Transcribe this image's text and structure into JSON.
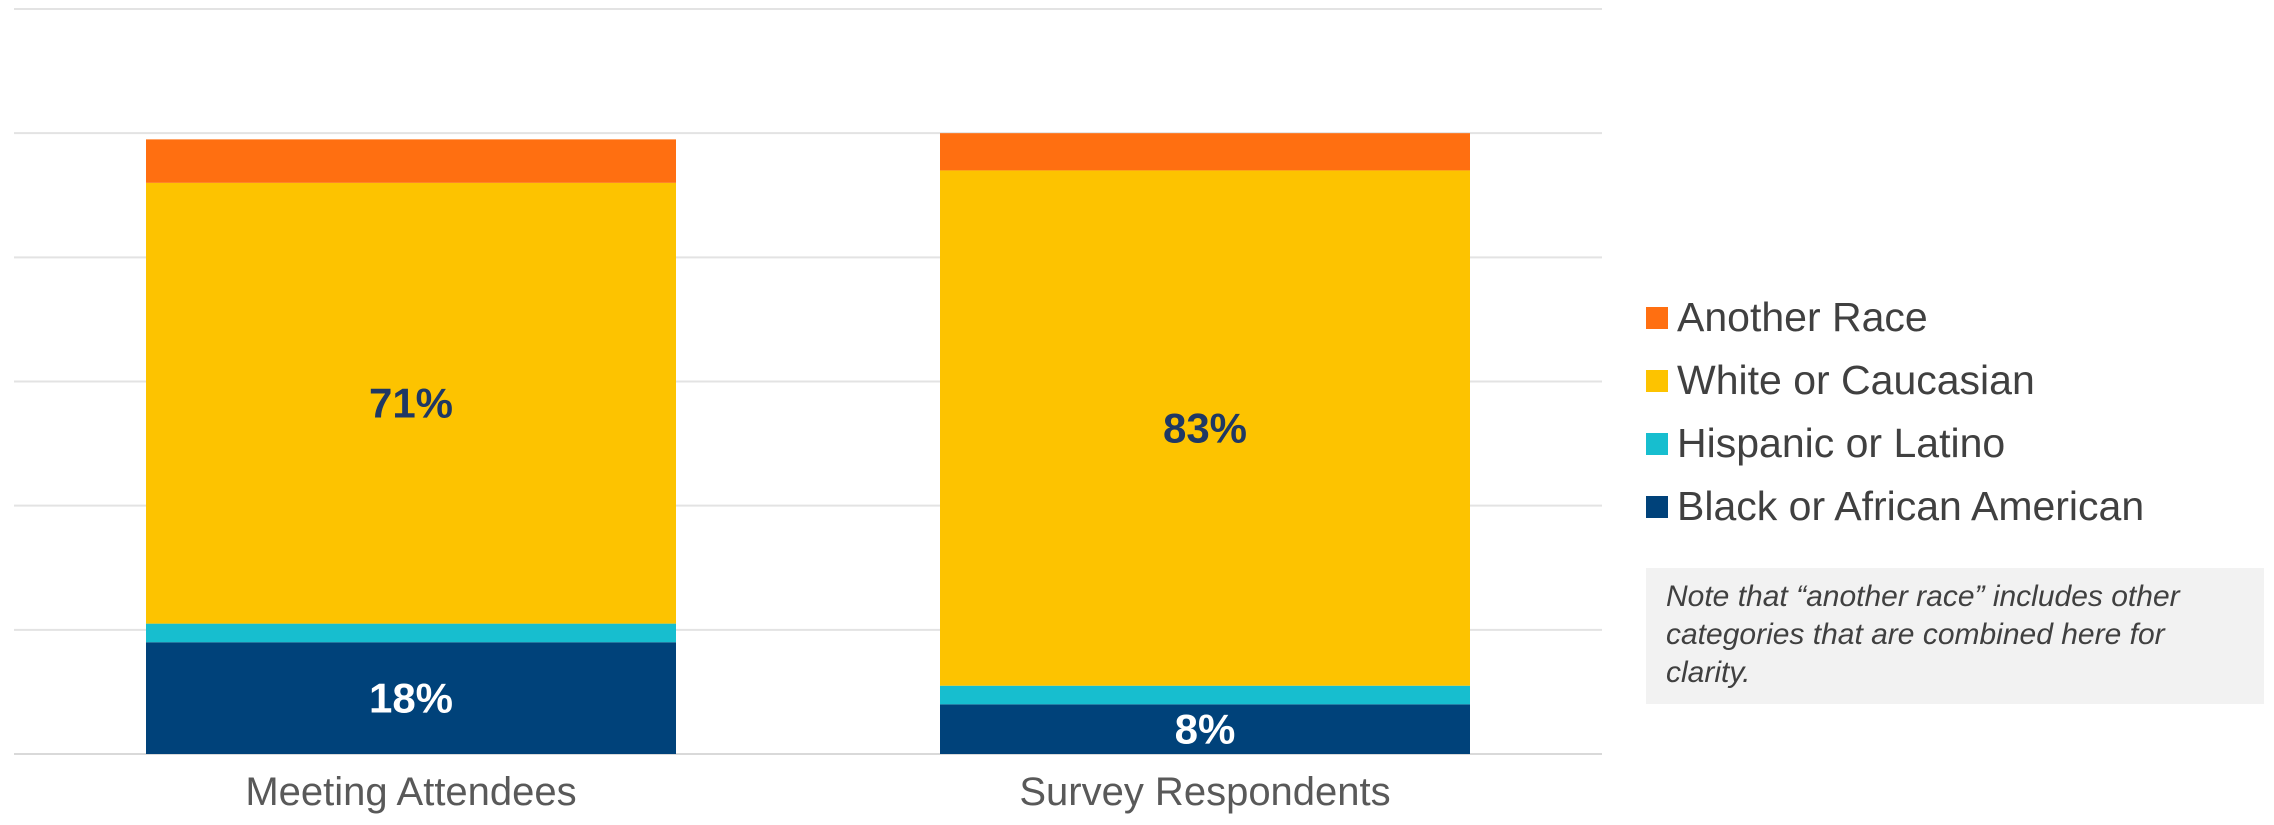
{
  "chart_data": {
    "type": "bar",
    "stacked": true,
    "categories": [
      "Meeting Attendees",
      "Survey Respondents"
    ],
    "series": [
      {
        "name": "Black or African American",
        "color": "#00427a",
        "values": [
          18,
          8
        ],
        "labels": [
          "18%",
          "8%"
        ]
      },
      {
        "name": "Hispanic or Latino",
        "color": "#17becf",
        "values": [
          3,
          3
        ],
        "labels": [
          "",
          ""
        ]
      },
      {
        "name": "White or Caucasian",
        "color": "#fdc300",
        "values": [
          71,
          83
        ],
        "labels": [
          "71%",
          "83%"
        ]
      },
      {
        "name": "Another Race",
        "color": "#ff6f11",
        "values": [
          7,
          6
        ],
        "labels": [
          "",
          ""
        ]
      }
    ],
    "legend_order": [
      "Another Race",
      "White or Caucasian",
      "Hispanic or Latino",
      "Black or African American"
    ],
    "ylim": [
      0,
      120
    ],
    "y_gridlines": [
      0,
      20,
      40,
      60,
      80,
      100,
      120
    ],
    "grid": true,
    "legend_position": "right",
    "label_colors": {
      "Black or African American": "#ffffff",
      "White or Caucasian": "#1f3864"
    }
  },
  "note": {
    "text": "Note that “another race” includes other categories that are combined here for clarity."
  }
}
